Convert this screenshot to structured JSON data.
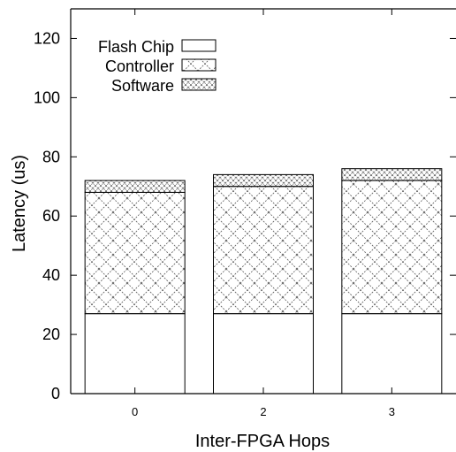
{
  "chart_data": {
    "type": "bar",
    "stacked": true,
    "categories": [
      "0",
      "2",
      "3"
    ],
    "series": [
      {
        "name": "Flash Chip",
        "pattern": "blank",
        "values": [
          27,
          27,
          27
        ]
      },
      {
        "name": "Controller",
        "pattern": "crosshatch",
        "values": [
          41,
          43,
          45
        ]
      },
      {
        "name": "Software",
        "pattern": "dense-crosshatch",
        "values": [
          4,
          4,
          4
        ]
      }
    ],
    "title": "",
    "xlabel": "Inter-FPGA Hops",
    "ylabel": "Latency (us)",
    "ylim": [
      0,
      130
    ],
    "yticks": [
      0,
      20,
      40,
      60,
      80,
      100,
      120
    ],
    "grid": false,
    "legend": "top-left"
  },
  "colors": {
    "stroke": "#000000",
    "background": "#ffffff",
    "hatch": "#555555"
  }
}
